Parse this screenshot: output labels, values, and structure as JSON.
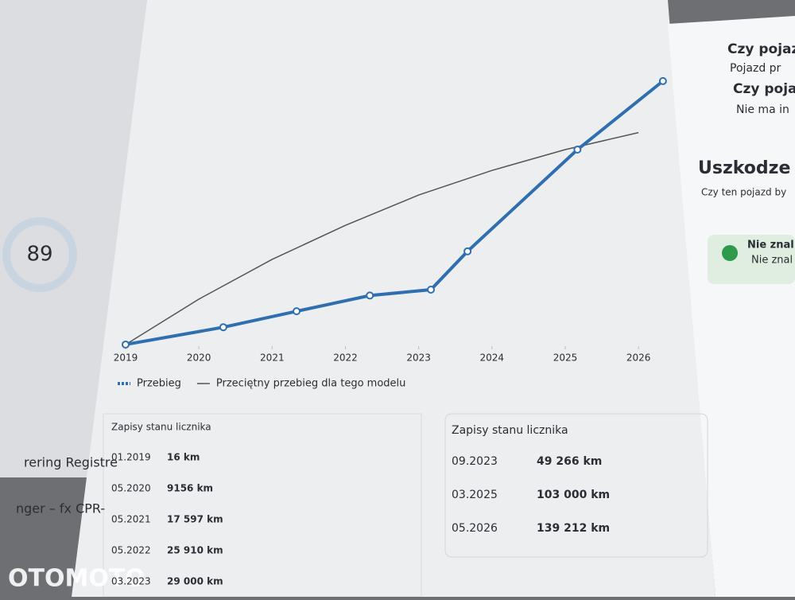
{
  "chart_data": {
    "type": "line",
    "xlim": [
      2019,
      2026.4
    ],
    "ylim": [
      0,
      140000
    ],
    "xticks": [
      2019,
      2020,
      2021,
      2022,
      2023,
      2024,
      2025,
      2026
    ],
    "series": [
      {
        "name": "Przebieg",
        "color": "#2f6fb0",
        "x": [
          "01.2019",
          "05.2020",
          "05.2021",
          "05.2022",
          "03.2023",
          "09.2023",
          "03.2025",
          "05.2026"
        ],
        "values": [
          16,
          9156,
          17597,
          25910,
          29000,
          49266,
          103000,
          139212
        ]
      },
      {
        "name": "Przeciętny przebieg dla tego modelu",
        "color": "#555555",
        "x": [
          2019,
          2020,
          2021,
          2022,
          2023,
          2024,
          2025,
          2026
        ],
        "values": [
          0,
          24000,
          45000,
          63000,
          79000,
          92000,
          103000,
          112000
        ]
      }
    ]
  },
  "tables": [
    {
      "title": "Zapisy stanu licznika",
      "rows": [
        [
          "01.2019",
          "16 km"
        ],
        [
          "05.2020",
          "9156 km"
        ],
        [
          "05.2021",
          "17 597 km"
        ],
        [
          "05.2022",
          "25 910 km"
        ],
        [
          "03.2023",
          "29 000 km"
        ]
      ]
    },
    {
      "title": "Zapisy stanu licznika",
      "rows": [
        [
          "09.2023",
          "49 266 km"
        ],
        [
          "03.2025",
          "103 000 km"
        ],
        [
          "05.2026",
          "139 212 km"
        ]
      ]
    }
  ],
  "side_panel": {
    "items": [
      {
        "title": "Czy pojaz",
        "text": "Pojazd pr"
      },
      {
        "title": "Czy poja",
        "text": "Nie ma in"
      }
    ],
    "section_title": "Uszkodze",
    "section_text": "Czy ten pojazd by",
    "status": [
      "Nie znal",
      "Nie znal"
    ]
  },
  "left_page": {
    "score": "89",
    "link": "rering Registre",
    "note": "nger – fx CPR-"
  },
  "watermark": "OTOMOTO"
}
